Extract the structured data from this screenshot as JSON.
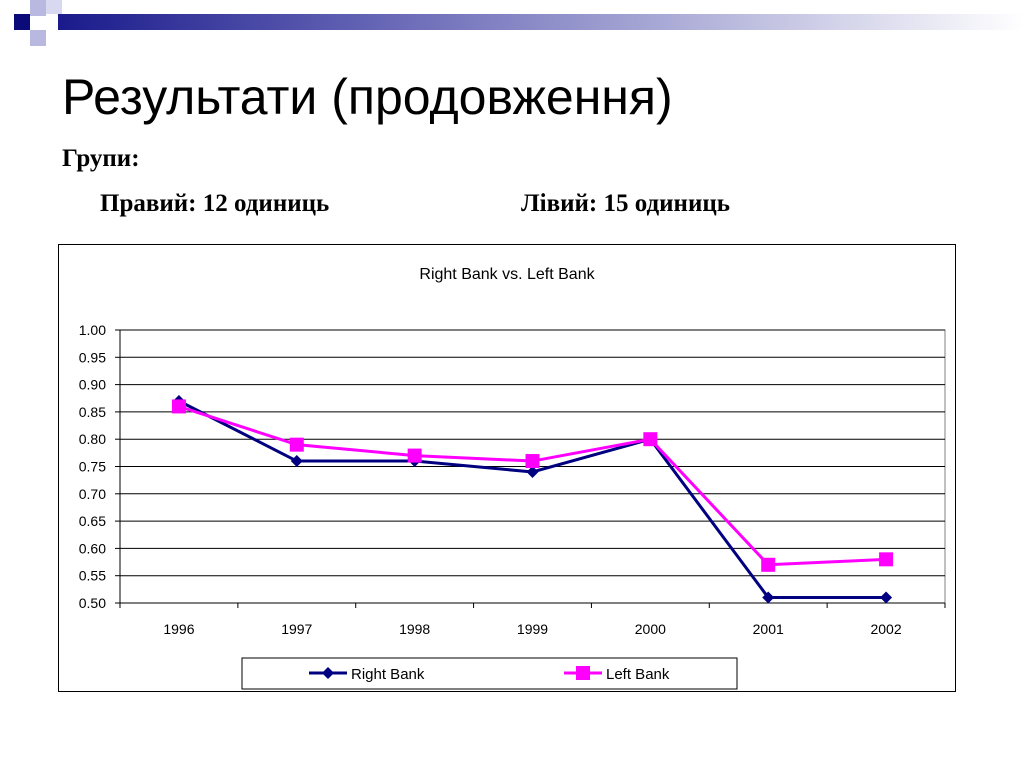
{
  "slide": {
    "title": "Результати (продовження)",
    "groups_heading": "Групи:",
    "group_right": "Правий: 12 одиниць",
    "group_left": "Лівий: 15 одиниць"
  },
  "colors": {
    "right_bank": "#000080",
    "left_bank": "#ff00ff",
    "decor_dark": "#0a0a78",
    "decor_light": "#b8b8e0"
  },
  "chart_data": {
    "type": "line",
    "title": "Right Bank vs. Left Bank",
    "categories": [
      "1996",
      "1997",
      "1998",
      "1999",
      "2000",
      "2001",
      "2002"
    ],
    "series": [
      {
        "name": "Right Bank",
        "values": [
          0.87,
          0.76,
          0.76,
          0.74,
          0.8,
          0.51,
          0.51
        ],
        "marker": "diamond"
      },
      {
        "name": "Left Bank",
        "values": [
          0.86,
          0.79,
          0.77,
          0.76,
          0.8,
          0.57,
          0.58
        ],
        "marker": "square"
      }
    ],
    "ylim": [
      0.5,
      1.0
    ],
    "yticks": [
      "0.50",
      "0.55",
      "0.60",
      "0.65",
      "0.70",
      "0.75",
      "0.80",
      "0.85",
      "0.90",
      "0.95",
      "1.00"
    ],
    "grid": true,
    "legend_position": "bottom"
  }
}
